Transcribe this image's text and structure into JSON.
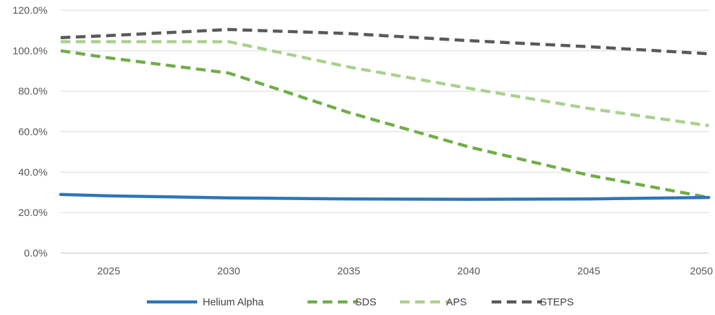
{
  "chart_data": {
    "type": "line",
    "title": "",
    "xlabel": "",
    "ylabel": "",
    "x": [
      2023,
      2025,
      2030,
      2035,
      2040,
      2045,
      2050
    ],
    "x_ticks": [
      "2025",
      "2030",
      "2035",
      "2040",
      "2045",
      "2050"
    ],
    "y_ticks": [
      "0.0%",
      "20.0%",
      "40.0%",
      "60.0%",
      "80.0%",
      "100.0%",
      "120.0%"
    ],
    "ylim": [
      0,
      120
    ],
    "grid": "horizontal",
    "legend_position": "bottom",
    "series": [
      {
        "name": "Helium Alpha",
        "style": "solid",
        "color": "#2E75B6",
        "values": [
          29.0,
          28.3,
          27.3,
          26.8,
          26.6,
          26.8,
          27.5
        ]
      },
      {
        "name": "SDS",
        "style": "dashed",
        "color": "#70AD47",
        "values": [
          100.0,
          96.5,
          89.0,
          69.5,
          52.5,
          38.5,
          27.5
        ]
      },
      {
        "name": "APS",
        "style": "dashed",
        "color": "#A9D18E",
        "values": [
          104.5,
          104.5,
          104.5,
          92.0,
          81.5,
          71.5,
          63.0
        ]
      },
      {
        "name": "STEPS",
        "style": "dashed",
        "color": "#595959",
        "values": [
          106.5,
          107.5,
          110.5,
          108.5,
          105.0,
          102.0,
          98.5
        ]
      }
    ]
  }
}
